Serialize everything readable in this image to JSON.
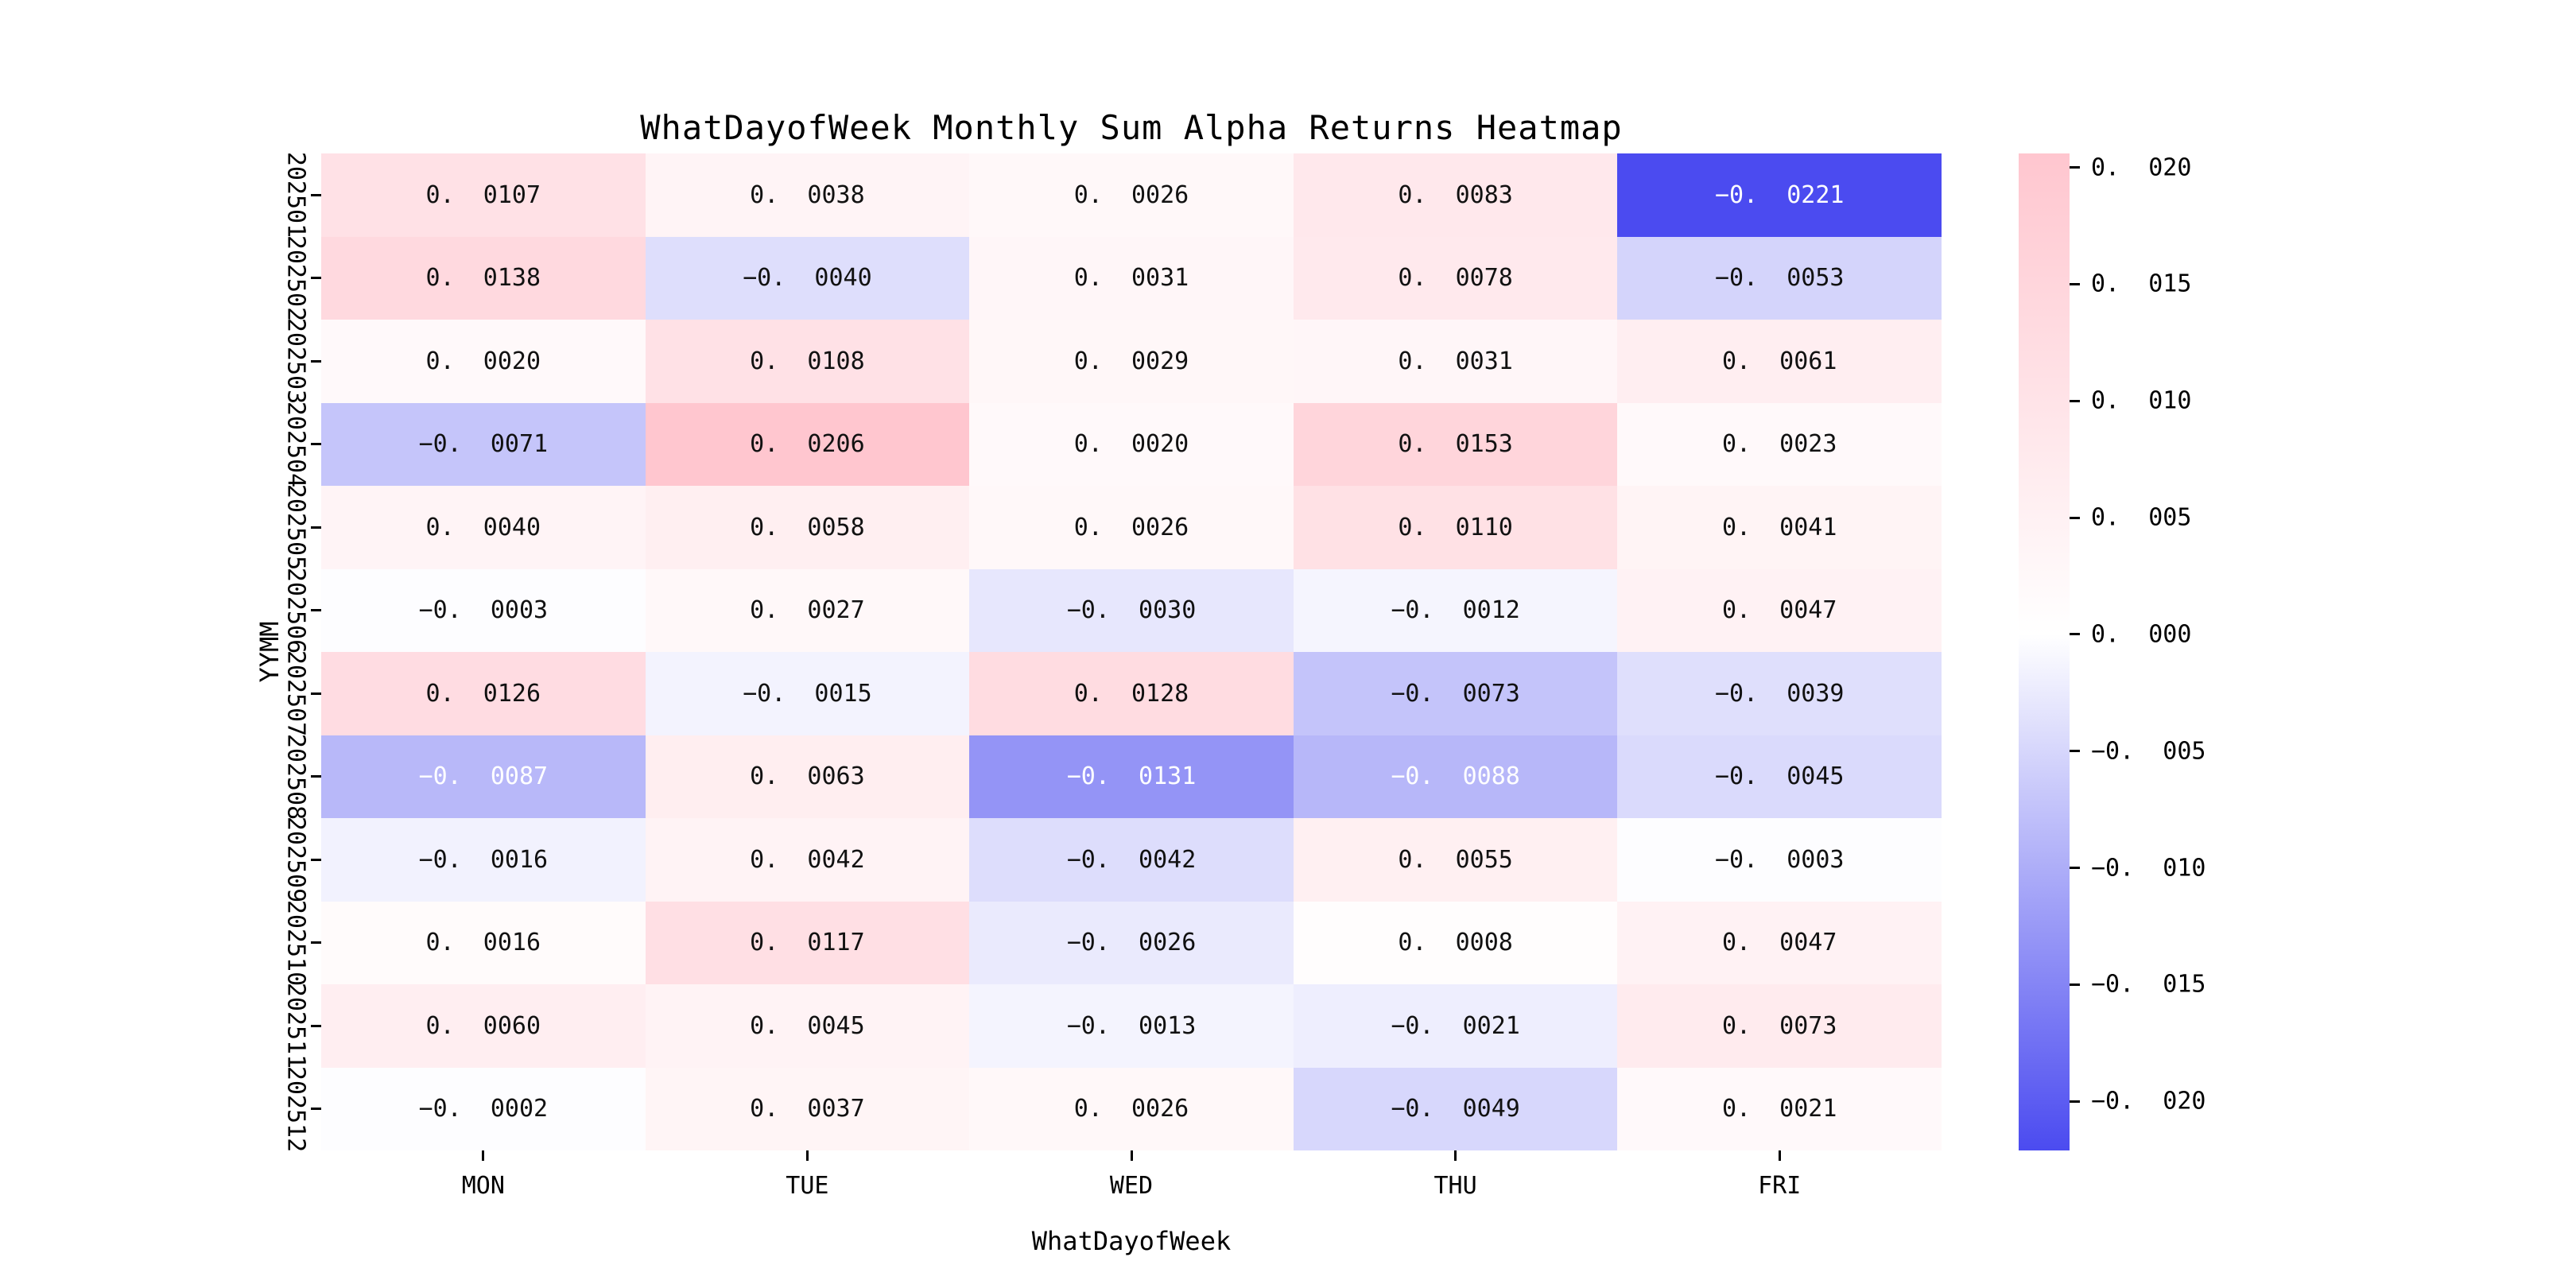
{
  "figure": {
    "title": "WhatDayofWeek Monthly Sum Alpha Returns Heatmap",
    "xlabel": "WhatDayofWeek",
    "ylabel": "YYMM"
  },
  "chart_data": {
    "type": "heatmap",
    "title": "WhatDayofWeek Monthly Sum Alpha Returns Heatmap",
    "xlabel": "WhatDayofWeek",
    "ylabel": "YYMM",
    "columns": [
      "MON",
      "TUE",
      "WED",
      "THU",
      "FRI"
    ],
    "rows": [
      "202501",
      "202502",
      "202503",
      "202504",
      "202505",
      "202506",
      "202507",
      "202508",
      "202509",
      "202510",
      "202511",
      "202512"
    ],
    "values": [
      [
        0.0107,
        0.0038,
        0.0026,
        0.0083,
        -0.0221
      ],
      [
        0.0138,
        -0.004,
        0.0031,
        0.0078,
        -0.0053
      ],
      [
        0.002,
        0.0108,
        0.0029,
        0.0031,
        0.0061
      ],
      [
        -0.0071,
        0.0206,
        0.002,
        0.0153,
        0.0023
      ],
      [
        0.004,
        0.0058,
        0.0026,
        0.011,
        0.0041
      ],
      [
        -0.0003,
        0.0027,
        -0.003,
        -0.0012,
        0.0047
      ],
      [
        0.0126,
        -0.0015,
        0.0128,
        -0.0073,
        -0.0039
      ],
      [
        -0.0087,
        0.0063,
        -0.0131,
        -0.0088,
        -0.0045
      ],
      [
        -0.0016,
        0.0042,
        -0.0042,
        0.0055,
        -0.0003
      ],
      [
        0.0016,
        0.0117,
        -0.0026,
        0.0008,
        0.0047
      ],
      [
        0.006,
        0.0045,
        -0.0013,
        -0.0021,
        0.0073
      ],
      [
        -0.0002,
        0.0037,
        0.0026,
        -0.0049,
        0.0021
      ]
    ],
    "value_decimals": 4,
    "annotation_white_text_below": -0.0085,
    "grid": false,
    "colorbar": {
      "position": "right",
      "vmax": 0.0206,
      "vmin": -0.0221,
      "ticks": [
        0.02,
        0.015,
        0.01,
        0.005,
        0.0,
        -0.005,
        -0.01,
        -0.015,
        -0.02
      ],
      "tick_decimals": 3,
      "color_positive_max": "#FFC6CF",
      "color_zero": "#FFFFFF",
      "color_negative_max": "#4B4BF0"
    }
  }
}
